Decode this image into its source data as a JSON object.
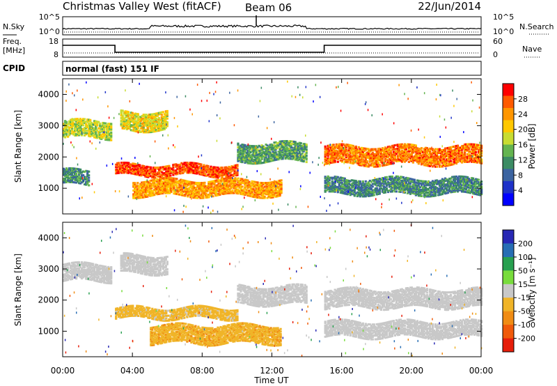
{
  "header": {
    "station": "Christmas Valley West (fitACF)",
    "beam": "Beam 06",
    "date": "22/Jun/2014"
  },
  "nsky_panel": {
    "left_label": "N.Sky",
    "left_ticks": [
      "10^5",
      "10^0"
    ],
    "right_ticks": [
      "10^5",
      "10^0"
    ],
    "right_label": "N.Search"
  },
  "freq_panel": {
    "left_label_line1": "Freq.",
    "left_label_line2": "[MHz]",
    "left_ticks": [
      "18",
      "8"
    ],
    "right_ticks": [
      "60",
      "0"
    ],
    "right_label": "Nave"
  },
  "cpid": {
    "label": "CPID",
    "mode_text": "normal (fast) 151 IF"
  },
  "power_panel": {
    "ylabel": "Slant Range [km]",
    "colorbar_label": "Power [dB]",
    "colorbar_ticks": [
      "28",
      "24",
      "20",
      "16",
      "12",
      "8",
      "4"
    ],
    "colorbar_colors": [
      "#ff0000",
      "#ff5a00",
      "#ff9600",
      "#ffc800",
      "#c8dc32",
      "#64b450",
      "#3c8c64",
      "#3c64a0",
      "#1e32c8",
      "#0000ff"
    ]
  },
  "velocity_panel": {
    "ylabel": "Slant Range [km]",
    "colorbar_label": "Velocity [m s⁻¹]",
    "colorbar_ticks": [
      "200",
      "100",
      "50",
      "15",
      "-15",
      "-50",
      "-100",
      "-200"
    ],
    "colorbar_colors": [
      "#2828b4",
      "#286eb4",
      "#28a050",
      "#78dc3c",
      "#c8c8c8",
      "#f0b428",
      "#f08c14",
      "#f05a0a",
      "#e61e0a"
    ]
  },
  "x_axis": {
    "label": "Time UT",
    "ticks": [
      "00:00",
      "04:00",
      "08:00",
      "12:00",
      "16:00",
      "20:00",
      "00:00"
    ]
  },
  "chart_data": {
    "type": "heatmap",
    "title": "Christmas Valley West (fitACF) Beam 06 22/Jun/2014",
    "xlabel": "Time UT",
    "xlim": [
      0,
      24
    ],
    "xticks": [
      "00:00",
      "04:00",
      "08:00",
      "12:00",
      "16:00",
      "20:00",
      "00:00"
    ],
    "panels": [
      {
        "name": "Power",
        "ylabel": "Slant Range [km]",
        "ylim": [
          180,
          4500
        ],
        "yticks": [
          1000,
          2000,
          3000,
          4000
        ],
        "color_unit": "dB",
        "color_range": [
          0,
          30
        ],
        "bands": [
          {
            "t": [
              0.0,
              2.8
            ],
            "r": [
              2650,
              3200
            ],
            "power": 16
          },
          {
            "t": [
              0.0,
              1.5
            ],
            "r": [
              1150,
              1600
            ],
            "power": 10
          },
          {
            "t": [
              3.0,
              10.0
            ],
            "r": [
              1450,
              1800
            ],
            "power": 26
          },
          {
            "t": [
              3.3,
              6.0
            ],
            "r": [
              2900,
              3500
            ],
            "power": 18
          },
          {
            "t": [
              4.0,
              12.5
            ],
            "r": [
              800,
              1300
            ],
            "power": 22
          },
          {
            "t": [
              10.0,
              14.0
            ],
            "r": [
              1900,
              2500
            ],
            "power": 12
          },
          {
            "t": [
              15.0,
              24.0
            ],
            "r": [
              1800,
              2400
            ],
            "power": 24
          },
          {
            "t": [
              15.0,
              24.0
            ],
            "r": [
              850,
              1350
            ],
            "power": 10
          }
        ]
      },
      {
        "name": "Velocity",
        "ylabel": "Slant Range [km]",
        "ylim": [
          180,
          4500
        ],
        "yticks": [
          1000,
          2000,
          3000,
          4000
        ],
        "color_unit": "m s⁻¹",
        "color_range": [
          -200,
          200
        ],
        "bands": [
          {
            "t": [
              0.0,
              2.8
            ],
            "r": [
              2650,
              3200
            ],
            "velocity": 0
          },
          {
            "t": [
              3.0,
              10.0
            ],
            "r": [
              1450,
              1800
            ],
            "velocity": -30
          },
          {
            "t": [
              3.3,
              6.0
            ],
            "r": [
              2900,
              3500
            ],
            "velocity": 0
          },
          {
            "t": [
              5.0,
              12.5
            ],
            "r": [
              650,
              1250
            ],
            "velocity": -60
          },
          {
            "t": [
              10.0,
              14.0
            ],
            "r": [
              1900,
              2500
            ],
            "velocity": 0
          },
          {
            "t": [
              15.0,
              24.0
            ],
            "r": [
              1800,
              2400
            ],
            "velocity": 0
          },
          {
            "t": [
              15.0,
              24.0
            ],
            "r": [
              850,
              1350
            ],
            "velocity": 0
          }
        ]
      }
    ],
    "freq_mhz": [
      {
        "t": [
          0.0,
          3.0
        ],
        "value": 15.5
      },
      {
        "t": [
          3.0,
          15.0
        ],
        "value": 10.5
      },
      {
        "t": [
          15.0,
          24.0
        ],
        "value": 15.5
      }
    ]
  }
}
